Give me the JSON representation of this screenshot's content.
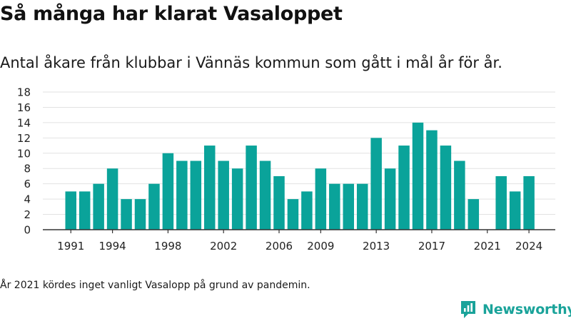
{
  "header": {
    "title": "Så många har klarat Vasaloppet",
    "subtitle": "Antal åkare från klubbar i Vännäs kommun som gått i mål år för år."
  },
  "footnote": "År 2021 kördes inget vanligt Vasalopp på grund av pandemin.",
  "brand": {
    "name": "Newsworthy",
    "icon": "newsworthy-logo-icon",
    "color": "#1aa39a"
  },
  "colors": {
    "bar": "#0aa39a",
    "grid": "#e2e2e2",
    "axis": "#333333"
  },
  "chart_data": {
    "type": "bar",
    "title": "Så många har klarat Vasaloppet",
    "xlabel": "",
    "ylabel": "",
    "ylim": [
      0,
      18
    ],
    "yticks": [
      0,
      2,
      4,
      6,
      8,
      10,
      12,
      14,
      16,
      18
    ],
    "xtick_labels": [
      "1991",
      "1994",
      "1998",
      "2002",
      "2006",
      "2009",
      "2013",
      "2017",
      "2021",
      "2024"
    ],
    "grid": true,
    "categories": [
      1991,
      1992,
      1993,
      1994,
      1995,
      1996,
      1997,
      1998,
      1999,
      2000,
      2001,
      2002,
      2003,
      2004,
      2005,
      2006,
      2007,
      2008,
      2009,
      2010,
      2011,
      2012,
      2013,
      2014,
      2015,
      2016,
      2017,
      2018,
      2019,
      2020,
      2021,
      2022,
      2023,
      2024
    ],
    "values": [
      5,
      5,
      6,
      8,
      4,
      4,
      6,
      10,
      9,
      9,
      11,
      9,
      8,
      11,
      9,
      7,
      4,
      5,
      8,
      6,
      6,
      6,
      12,
      8,
      11,
      14,
      13,
      11,
      9,
      4,
      0,
      7,
      5,
      7
    ]
  }
}
